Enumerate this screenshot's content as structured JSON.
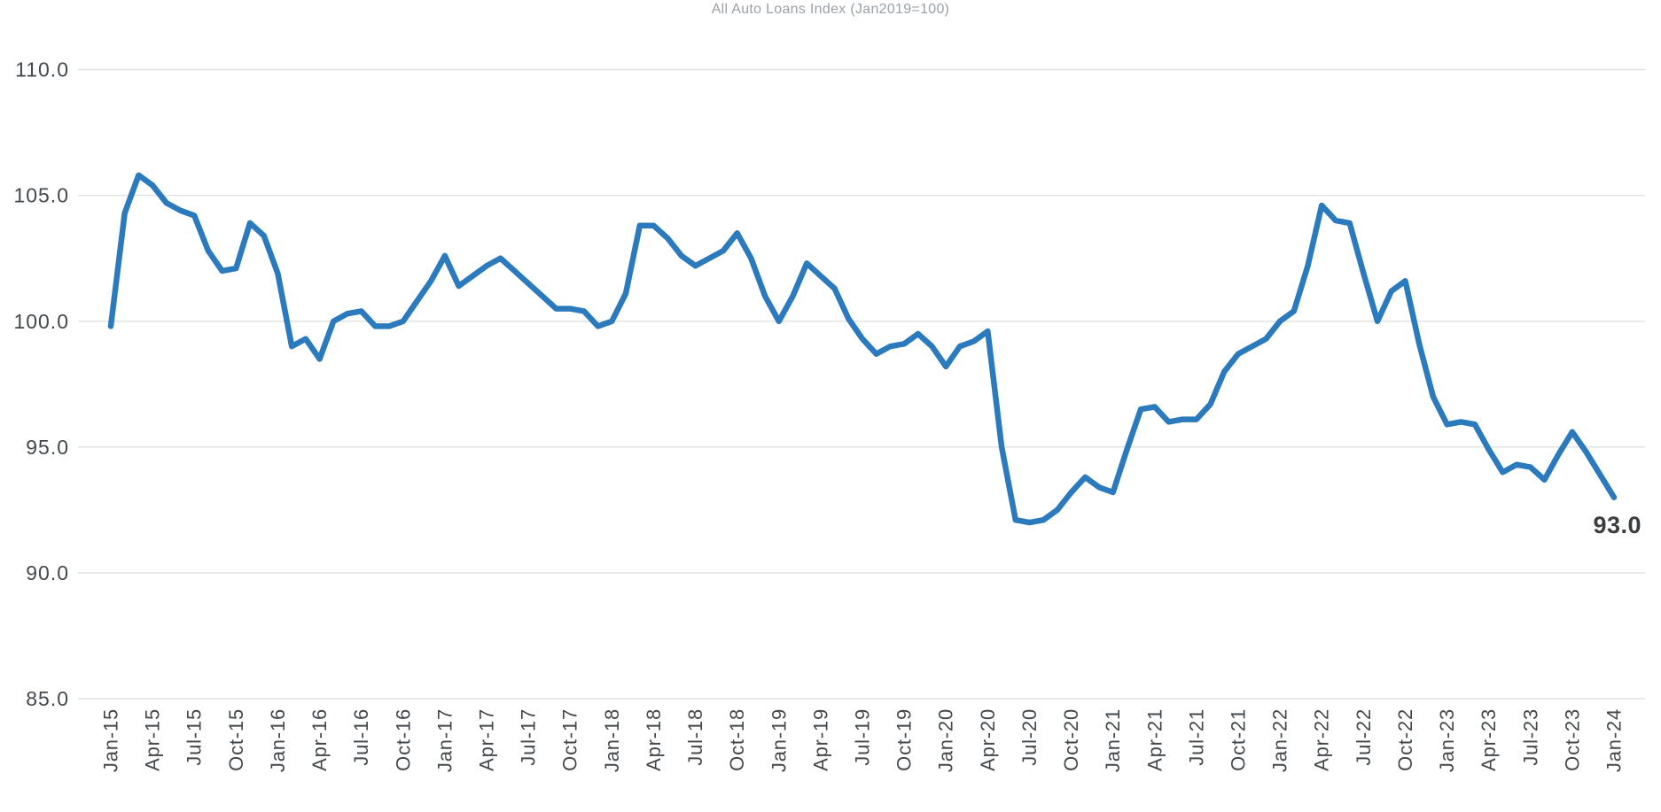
{
  "title": "All Auto Loans Index (Jan2019=100)",
  "end_label": "93.0",
  "colors": {
    "line": "#2a7abd",
    "grid": "#e4e4e4",
    "title_text": "#99a1a8",
    "axis_text": "#43484c",
    "end_label_text": "#3a3d40",
    "background": "#ffffff"
  },
  "y_axis": {
    "labels": [
      "110.0",
      "105.0",
      "100.0",
      "95.0",
      "90.0",
      "85.0"
    ]
  },
  "chart_data": {
    "type": "line",
    "title": "All Auto Loans Index (Jan2019=100)",
    "frequency": "monthly",
    "x_start": "Jan-15",
    "x_end": "Jan-24",
    "ylim": [
      85,
      110
    ],
    "y_ticks": [
      110,
      105,
      100,
      95,
      90,
      85
    ],
    "grid": "horizontal",
    "legend": "none",
    "x_tick_labels": [
      "Jan-15",
      "Apr-15",
      "Jul-15",
      "Oct-15",
      "Jan-16",
      "Apr-16",
      "Jul-16",
      "Oct-16",
      "Jan-17",
      "Apr-17",
      "Jul-17",
      "Oct-17",
      "Jan-18",
      "Apr-18",
      "Jul-18",
      "Oct-18",
      "Jan-19",
      "Apr-19",
      "Jul-19",
      "Oct-19",
      "Jan-20",
      "Apr-20",
      "Jul-20",
      "Oct-20",
      "Jan-21",
      "Apr-21",
      "Jul-21",
      "Oct-21",
      "Jan-22",
      "Apr-22",
      "Jul-22",
      "Oct-22",
      "Jan-23",
      "Apr-23",
      "Jul-23",
      "Oct-23",
      "Jan-24"
    ],
    "series": [
      {
        "name": "All Auto Loans Index",
        "values": [
          99.8,
          104.3,
          105.8,
          105.4,
          104.7,
          104.4,
          104.2,
          102.8,
          102.0,
          102.1,
          103.9,
          103.4,
          101.9,
          99.0,
          99.3,
          98.5,
          100.0,
          100.3,
          100.4,
          99.8,
          99.8,
          100.0,
          100.8,
          101.6,
          102.6,
          101.4,
          101.8,
          102.2,
          102.5,
          102.0,
          101.5,
          101.0,
          100.5,
          100.5,
          100.4,
          99.8,
          100.0,
          101.1,
          103.8,
          103.8,
          103.3,
          102.6,
          102.2,
          102.5,
          102.8,
          103.5,
          102.5,
          101.0,
          100.0,
          101.0,
          102.3,
          101.8,
          101.3,
          100.1,
          99.3,
          98.7,
          99.0,
          99.1,
          99.5,
          99.0,
          98.2,
          99.0,
          99.2,
          99.6,
          95.0,
          92.1,
          92.0,
          92.1,
          92.5,
          93.2,
          93.8,
          93.4,
          93.2,
          94.9,
          96.5,
          96.6,
          96.0,
          96.1,
          96.1,
          96.7,
          98.0,
          98.7,
          99.0,
          99.3,
          100.0,
          100.4,
          102.2,
          104.6,
          104.0,
          103.9,
          101.9,
          100.0,
          101.2,
          101.6,
          99.1,
          97.0,
          95.9,
          96.0,
          95.9,
          94.9,
          94.0,
          94.3,
          94.2,
          93.7,
          94.7,
          95.6,
          94.8,
          93.9,
          93.0
        ]
      }
    ],
    "annotations": [
      {
        "text": "93.0",
        "attached_to": "last-point"
      }
    ]
  }
}
